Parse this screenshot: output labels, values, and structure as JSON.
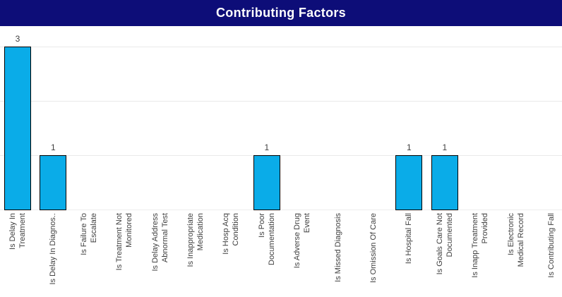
{
  "header": {
    "title": "Contributing Factors",
    "bg_color": "#0D0D78",
    "text_color": "#FFFFFF"
  },
  "chart_data": {
    "type": "bar",
    "title": "Contributing Factors",
    "categories": [
      [
        "Is Delay In",
        "Treatment"
      ],
      [
        "Is Delay In Diagnos.."
      ],
      [
        "Is Failure To",
        "Escalate"
      ],
      [
        "Is Treatment Not",
        "Monitored"
      ],
      [
        "Is Delay Address",
        "Abnormal Test"
      ],
      [
        "Is Inappropriate",
        "Medication"
      ],
      [
        "Is Hosp Acq",
        "Condition"
      ],
      [
        "Is Poor",
        "Documentation"
      ],
      [
        "Is Adverse Drug",
        "Event"
      ],
      [
        "Is Missed Diagnosis"
      ],
      [
        "Is Omission Of Care"
      ],
      [
        "Is Hospital Fall"
      ],
      [
        "Is Goals Care Not",
        "Documented"
      ],
      [
        "Is Inapp Treatment",
        "Provided"
      ],
      [
        "Is Electronic",
        "Medical Record"
      ],
      [
        "Is Contributing Fall"
      ]
    ],
    "values": [
      3,
      1,
      0,
      0,
      0,
      0,
      0,
      1,
      0,
      0,
      0,
      1,
      1,
      0,
      0,
      0
    ],
    "data_labels": [
      "3",
      "1",
      "",
      "",
      "",
      "",
      "",
      "1",
      "",
      "",
      "",
      "1",
      "1",
      "",
      "",
      ""
    ],
    "ylim": [
      0,
      3
    ],
    "gridline_values": [
      1,
      2,
      3
    ],
    "legend": "none",
    "xlabel": "",
    "ylabel": "",
    "bar_color": "#0AACE8",
    "bar_border_color": "#000000",
    "text_color": "#404040",
    "gridline_color": "#EAEAEA",
    "baseline_color": "#EDEDED"
  }
}
